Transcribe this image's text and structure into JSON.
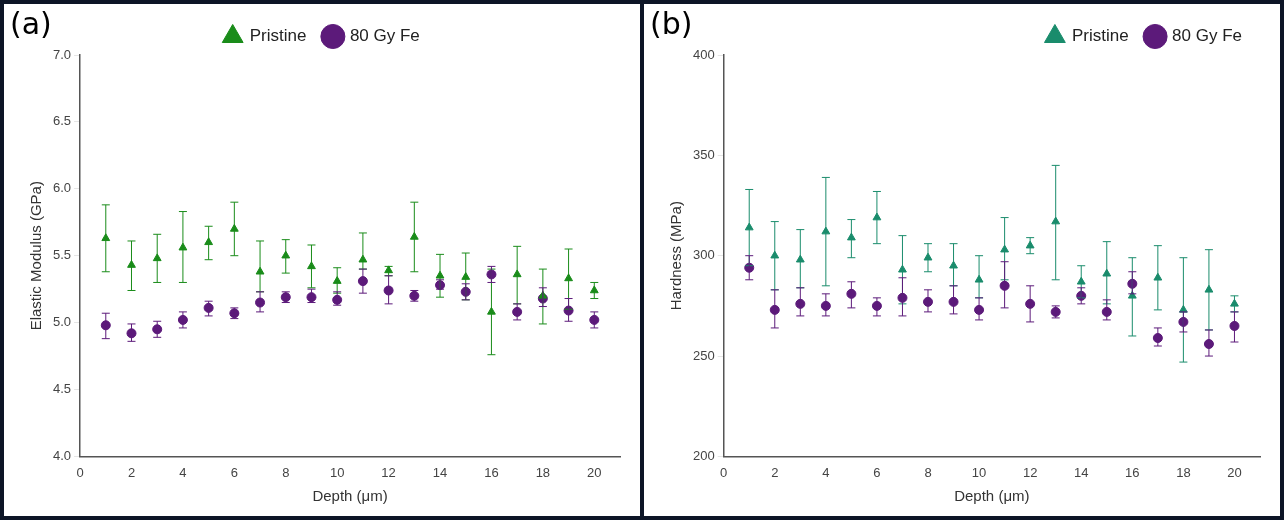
{
  "chart_data": [
    {
      "type": "scatter",
      "annotations": [
        "(a)"
      ],
      "xlabel": "Depth (μm)",
      "ylabel": "Elastic Modulus (GPa)",
      "xlim": [
        0,
        21
      ],
      "xticks": [
        0,
        2,
        4,
        6,
        8,
        10,
        12,
        14,
        16,
        18,
        20
      ],
      "ylim": [
        4,
        7
      ],
      "yticks": [
        {
          "value": 4,
          "label": "4.0"
        },
        {
          "value": 4.5,
          "label": "4.5"
        },
        {
          "value": 5,
          "label": "5.0"
        },
        {
          "value": 5.5,
          "label": "5.5"
        },
        {
          "value": 6,
          "label": "6.0"
        },
        {
          "value": 6.5,
          "label": "6.5"
        },
        {
          "value": 7,
          "label": "7.0"
        }
      ],
      "grid": false,
      "legend": "top",
      "x": [
        1,
        2,
        3,
        4,
        5,
        6,
        7,
        8,
        9,
        10,
        11,
        12,
        13,
        14,
        15,
        16,
        17,
        18,
        19,
        20
      ],
      "series": [
        {
          "name": "Pristine",
          "color": "#1a8c1a",
          "marker": "triangle",
          "values": [
            5.63,
            5.43,
            5.48,
            5.56,
            5.6,
            5.7,
            5.38,
            5.5,
            5.42,
            5.31,
            5.47,
            5.39,
            5.64,
            5.35,
            5.34,
            5.08,
            5.36,
            5.2,
            5.33,
            5.24
          ],
          "errors": [
            [
              5.38,
              5.88
            ],
            [
              5.24,
              5.61
            ],
            [
              5.3,
              5.66
            ],
            [
              5.3,
              5.83
            ],
            [
              5.47,
              5.72
            ],
            [
              5.5,
              5.9
            ],
            [
              5.23,
              5.61
            ],
            [
              5.37,
              5.62
            ],
            [
              5.26,
              5.58
            ],
            [
              5.22,
              5.41
            ],
            [
              5.4,
              5.67
            ],
            [
              5.35,
              5.42
            ],
            [
              5.38,
              5.9
            ],
            [
              5.19,
              5.51
            ],
            [
              5.17,
              5.52
            ],
            [
              4.76,
              5.4
            ],
            [
              5.14,
              5.57
            ],
            [
              4.99,
              5.4
            ],
            [
              5.1,
              5.55
            ],
            [
              5.18,
              5.3
            ]
          ]
        },
        {
          "name": "80 Gy Fe",
          "color": "#5c1a7a",
          "marker": "circle",
          "values": [
            4.98,
            4.92,
            4.95,
            5.02,
            5.11,
            5.07,
            5.15,
            5.19,
            5.19,
            5.17,
            5.31,
            5.24,
            5.2,
            5.28,
            5.23,
            5.36,
            5.08,
            5.18,
            5.09,
            5.02
          ],
          "errors": [
            [
              4.88,
              5.07
            ],
            [
              4.86,
              4.99
            ],
            [
              4.89,
              5.01
            ],
            [
              4.96,
              5.08
            ],
            [
              5.05,
              5.16
            ],
            [
              5.03,
              5.11
            ],
            [
              5.08,
              5.23
            ],
            [
              5.15,
              5.23
            ],
            [
              5.15,
              5.25
            ],
            [
              5.13,
              5.23
            ],
            [
              5.22,
              5.4
            ],
            [
              5.14,
              5.35
            ],
            [
              5.16,
              5.24
            ],
            [
              5.25,
              5.32
            ],
            [
              5.17,
              5.29
            ],
            [
              5.3,
              5.42
            ],
            [
              5.02,
              5.14
            ],
            [
              5.12,
              5.26
            ],
            [
              5.01,
              5.18
            ],
            [
              4.96,
              5.08
            ]
          ]
        }
      ]
    },
    {
      "type": "scatter",
      "annotations": [
        "(b)"
      ],
      "xlabel": "Depth (μm)",
      "ylabel": "Hardness (MPa)",
      "xlim": [
        0,
        21
      ],
      "xticks": [
        0,
        2,
        4,
        6,
        8,
        10,
        12,
        14,
        16,
        18,
        20
      ],
      "ylim": [
        200,
        400
      ],
      "yticks": [
        200,
        250,
        300,
        350,
        400
      ],
      "grid": false,
      "legend": "top right",
      "x": [
        1,
        2,
        3,
        4,
        5,
        6,
        7,
        8,
        9,
        10,
        11,
        12,
        13,
        14,
        15,
        16,
        17,
        18,
        19,
        20
      ],
      "series": [
        {
          "name": "Pristine",
          "color": "#1a8c6c",
          "marker": "triangle",
          "values": [
            314,
            300,
            298,
            312,
            309,
            319,
            293,
            299,
            295,
            288,
            303,
            305,
            317,
            287,
            291,
            280,
            289,
            273,
            283,
            276
          ],
          "errors": [
            [
              295,
              333
            ],
            [
              283,
              317
            ],
            [
              284,
              313
            ],
            [
              285,
              339
            ],
            [
              299,
              318
            ],
            [
              306,
              332
            ],
            [
              276,
              310
            ],
            [
              292,
              306
            ],
            [
              285,
              306
            ],
            [
              279,
              300
            ],
            [
              288,
              319
            ],
            [
              301,
              309
            ],
            [
              288,
              345
            ],
            [
              279,
              295
            ],
            [
              276,
              307
            ],
            [
              260,
              299
            ],
            [
              273,
              305
            ],
            [
              247,
              299
            ],
            [
              263,
              303
            ],
            [
              272,
              280
            ]
          ]
        },
        {
          "name": "80 Gy Fe",
          "color": "#5c1a7a",
          "marker": "circle",
          "values": [
            294,
            273,
            276,
            275,
            281,
            275,
            279,
            277,
            277,
            273,
            285,
            276,
            272,
            280,
            272,
            286,
            259,
            267,
            256,
            265
          ],
          "errors": [
            [
              288,
              300
            ],
            [
              264,
              283
            ],
            [
              270,
              284
            ],
            [
              270,
              281
            ],
            [
              274,
              287
            ],
            [
              270,
              279
            ],
            [
              270,
              289
            ],
            [
              272,
              283
            ],
            [
              271,
              285
            ],
            [
              268,
              279
            ],
            [
              274,
              297
            ],
            [
              267,
              285
            ],
            [
              269,
              275
            ],
            [
              276,
              284
            ],
            [
              268,
              278
            ],
            [
              281,
              292
            ],
            [
              255,
              264
            ],
            [
              262,
              272
            ],
            [
              250,
              263
            ],
            [
              257,
              272
            ]
          ]
        }
      ]
    }
  ]
}
